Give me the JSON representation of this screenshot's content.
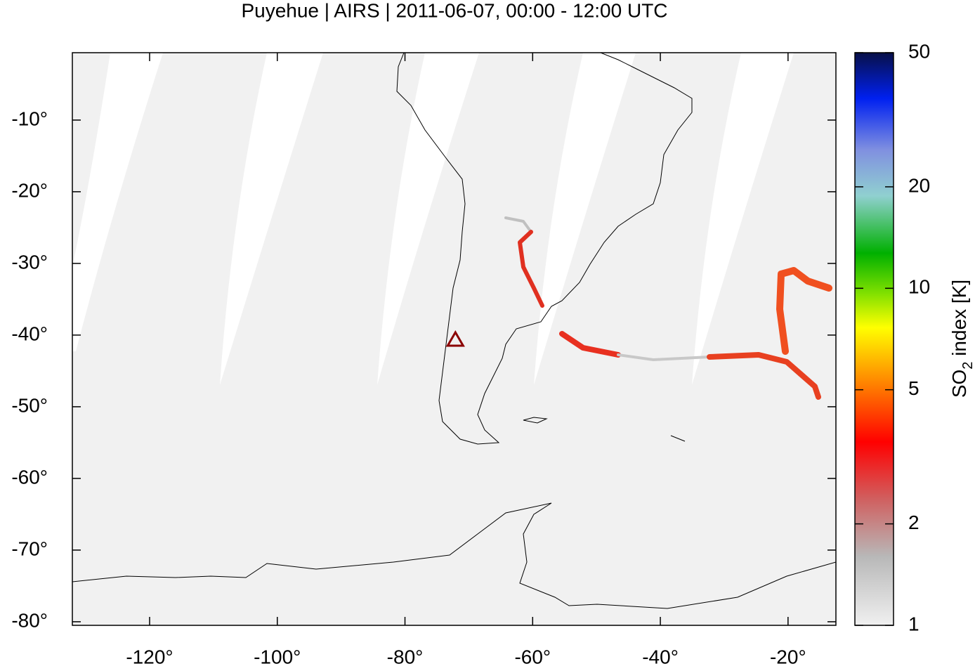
{
  "chart_data": {
    "type": "map",
    "title": "Puyehue | AIRS | 2011-06-07, 00:00 - 12:00 UTC",
    "xlim": [
      -132.1,
      -12.5
    ],
    "ylim": [
      -80.5,
      -0.6
    ],
    "xticks": [
      {
        "value": -120,
        "label": "-120°"
      },
      {
        "value": -100,
        "label": "-100°"
      },
      {
        "value": -80,
        "label": "-80°"
      },
      {
        "value": -60,
        "label": "-60°"
      },
      {
        "value": -40,
        "label": "-40°"
      },
      {
        "value": -20,
        "label": "-20°"
      }
    ],
    "yticks": [
      {
        "value": -10,
        "label": "-10°"
      },
      {
        "value": -20,
        "label": "-20°"
      },
      {
        "value": -30,
        "label": "-30°"
      },
      {
        "value": -40,
        "label": "-40°"
      },
      {
        "value": -50,
        "label": "-50°"
      },
      {
        "value": -60,
        "label": "-60°"
      },
      {
        "value": -70,
        "label": "-70°"
      },
      {
        "value": -80,
        "label": "-80°"
      }
    ],
    "colorbar": {
      "label": {
        "prefix": "SO",
        "subscript": "2",
        "suffix": " index [K]"
      },
      "lim": [
        1,
        50
      ],
      "ticks": [
        1,
        2,
        5,
        10,
        20,
        50
      ],
      "log": true
    },
    "volcano": {
      "lon": -72.1,
      "lat": -40.6,
      "color": "#8b0000"
    }
  }
}
